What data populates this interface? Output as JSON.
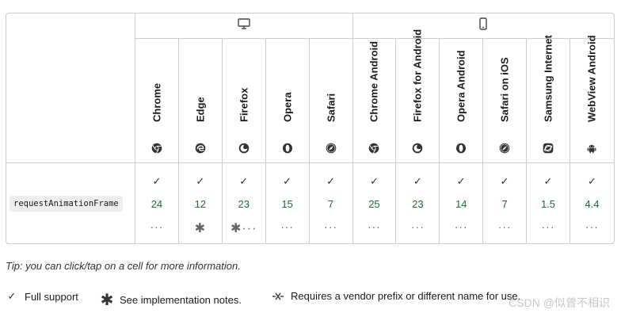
{
  "platforms": {
    "desktop_icon": "desktop-icon",
    "mobile_icon": "mobile-icon"
  },
  "browsers": [
    {
      "name": "Chrome",
      "icon": "chrome-icon"
    },
    {
      "name": "Edge",
      "icon": "edge-icon"
    },
    {
      "name": "Firefox",
      "icon": "firefox-icon"
    },
    {
      "name": "Opera",
      "icon": "opera-icon"
    },
    {
      "name": "Safari",
      "icon": "safari-icon"
    },
    {
      "name": "Chrome Android",
      "icon": "chrome-icon"
    },
    {
      "name": "Firefox for Android",
      "icon": "firefox-icon"
    },
    {
      "name": "Opera Android",
      "icon": "opera-icon"
    },
    {
      "name": "Safari on iOS",
      "icon": "safari-icon"
    },
    {
      "name": "Samsung Internet",
      "icon": "samsung-internet-icon"
    },
    {
      "name": "WebView Android",
      "icon": "android-icon"
    }
  ],
  "feature": {
    "name": "requestAnimationFrame",
    "support": [
      {
        "check": "✓",
        "version": "24",
        "extra": "···"
      },
      {
        "check": "✓",
        "version": "12",
        "extra": "✱"
      },
      {
        "check": "✓",
        "version": "23",
        "extra": "✱···"
      },
      {
        "check": "✓",
        "version": "15",
        "extra": "···"
      },
      {
        "check": "✓",
        "version": "7",
        "extra": "···"
      },
      {
        "check": "✓",
        "version": "25",
        "extra": "···"
      },
      {
        "check": "✓",
        "version": "23",
        "extra": "···"
      },
      {
        "check": "✓",
        "version": "14",
        "extra": "···"
      },
      {
        "check": "✓",
        "version": "7",
        "extra": "···"
      },
      {
        "check": "✓",
        "version": "1.5",
        "extra": "···"
      },
      {
        "check": "✓",
        "version": "4.4",
        "extra": "···"
      }
    ]
  },
  "tip": "Tip: you can click/tap on a cell for more information.",
  "legend": {
    "full_support": "Full support",
    "implementation_notes": "See implementation notes.",
    "vendor_prefix": "Requires a vendor prefix or different name for use."
  },
  "watermark": "CSDN @似曾不相识",
  "colors": {
    "version_green": "#1e6d2e",
    "border": "#cdcdcd"
  }
}
